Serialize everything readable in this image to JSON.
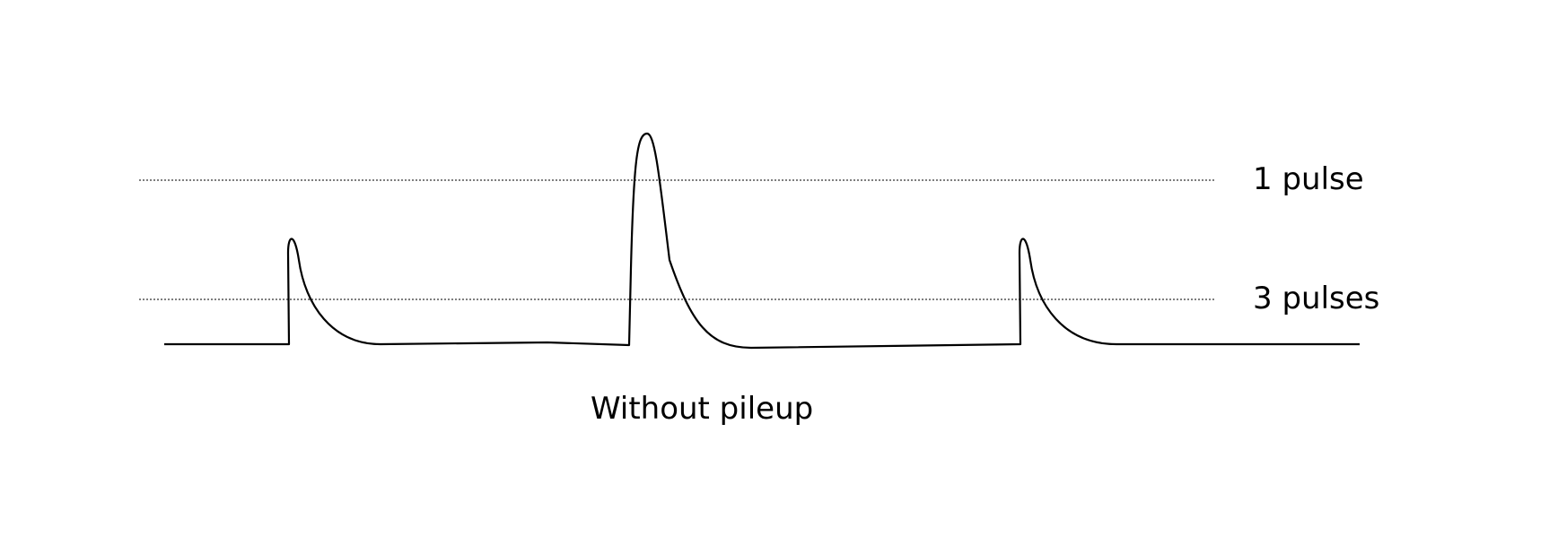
{
  "threshold_labels": {
    "upper": "1 pulse",
    "lower": "3 pulses"
  },
  "caption": "Without pileup",
  "colors": {
    "line": "#000000",
    "threshold": "#333333"
  }
}
